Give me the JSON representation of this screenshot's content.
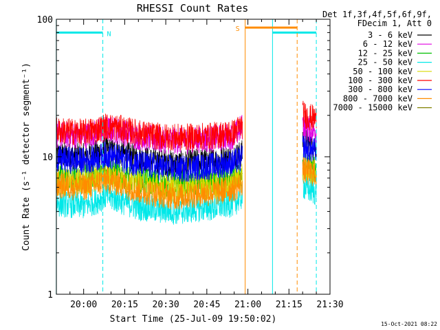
{
  "chart_data": {
    "type": "line",
    "title": "RHESSI Count Rates",
    "xlabel": "Start Time (25-Jul-09 19:50:02)",
    "ylabel": "Count Rate (s⁻¹ detector segment⁻¹)",
    "yscale": "log",
    "ylim": [
      1,
      100
    ],
    "xlim": [
      "19:50:02",
      "21:30"
    ],
    "x_ticks": [
      "20:00",
      "20:15",
      "20:30",
      "20:45",
      "21:00",
      "21:15",
      "21:30"
    ],
    "y_ticks": [
      "1",
      "10",
      "100"
    ],
    "grid": false,
    "legend_position": "top-right",
    "legend_header": [
      "Det 1f,3f,4f,5f,6f,9f,",
      "FDecim 1, Att 0"
    ],
    "timestamp": "15-Oct-2021 08:22",
    "series": [
      {
        "name": "3 - 6 keV",
        "color": "#000000",
        "points": [
          [
            "19:50",
            10.3
          ],
          [
            "20:00",
            10.0
          ],
          [
            "20:05",
            10.6
          ],
          [
            "20:08",
            11.2
          ],
          [
            "20:12",
            10.8
          ],
          [
            "20:20",
            9.7
          ],
          [
            "20:28",
            9.2
          ],
          [
            "20:35",
            8.8
          ],
          [
            "20:42",
            9.2
          ],
          [
            "20:48",
            9.4
          ],
          [
            "20:55",
            9.9
          ],
          [
            "20:58",
            10.6
          ],
          [
            "21:20",
            13.5
          ],
          [
            "21:22",
            12.5
          ],
          [
            "21:25",
            12.0
          ]
        ]
      },
      {
        "name": "6 - 12 keV",
        "color": "#e000e0",
        "points": [
          [
            "19:50",
            14.5
          ],
          [
            "20:00",
            14.2
          ],
          [
            "20:05",
            15.0
          ],
          [
            "20:08",
            15.8
          ],
          [
            "20:12",
            15.5
          ],
          [
            "20:20",
            14.0
          ],
          [
            "20:28",
            13.2
          ],
          [
            "20:35",
            13.0
          ],
          [
            "20:42",
            13.3
          ],
          [
            "20:48",
            13.5
          ],
          [
            "20:55",
            14.2
          ],
          [
            "20:58",
            16.5
          ],
          [
            "21:20",
            17.0
          ],
          [
            "21:22",
            16.0
          ],
          [
            "21:25",
            15.5
          ]
        ]
      },
      {
        "name": "12 - 25 keV",
        "color": "#00c000",
        "points": [
          [
            "19:50",
            7.0
          ],
          [
            "20:00",
            7.0
          ],
          [
            "20:05",
            7.5
          ],
          [
            "20:08",
            8.0
          ],
          [
            "20:12",
            7.6
          ],
          [
            "20:20",
            6.8
          ],
          [
            "20:28",
            6.4
          ],
          [
            "20:35",
            6.2
          ],
          [
            "20:42",
            6.5
          ],
          [
            "20:48",
            6.6
          ],
          [
            "20:55",
            7.0
          ],
          [
            "20:58",
            7.6
          ],
          [
            "21:20",
            8.8
          ],
          [
            "21:22",
            8.4
          ],
          [
            "21:25",
            8.0
          ]
        ]
      },
      {
        "name": "25 - 50 keV",
        "color": "#00e8e8",
        "points": [
          [
            "19:50",
            4.6
          ],
          [
            "20:00",
            4.4
          ],
          [
            "20:05",
            4.8
          ],
          [
            "20:08",
            5.2
          ],
          [
            "20:12",
            4.9
          ],
          [
            "20:20",
            4.3
          ],
          [
            "20:28",
            4.1
          ],
          [
            "20:35",
            4.0
          ],
          [
            "20:42",
            4.2
          ],
          [
            "20:48",
            4.3
          ],
          [
            "20:55",
            4.6
          ],
          [
            "20:58",
            5.2
          ],
          [
            "21:20",
            6.2
          ],
          [
            "21:22",
            5.8
          ],
          [
            "21:25",
            5.5
          ]
        ]
      },
      {
        "name": "50 - 100 keV",
        "color": "#d8d800",
        "points": [
          [
            "19:50",
            6.5
          ],
          [
            "20:00",
            6.5
          ],
          [
            "20:05",
            7.0
          ],
          [
            "20:08",
            7.4
          ],
          [
            "20:12",
            7.0
          ],
          [
            "20:20",
            6.3
          ],
          [
            "20:28",
            6.0
          ],
          [
            "20:35",
            5.8
          ],
          [
            "20:42",
            6.0
          ],
          [
            "20:48",
            6.1
          ],
          [
            "20:55",
            6.5
          ],
          [
            "20:58",
            7.2
          ],
          [
            "21:20",
            8.4
          ],
          [
            "21:22",
            8.0
          ],
          [
            "21:25",
            7.8
          ]
        ]
      },
      {
        "name": "100 - 300 keV",
        "color": "#ff0000",
        "points": [
          [
            "19:50",
            15.5
          ],
          [
            "20:00",
            15.0
          ],
          [
            "20:05",
            15.8
          ],
          [
            "20:08",
            16.6
          ],
          [
            "20:12",
            16.3
          ],
          [
            "20:20",
            14.8
          ],
          [
            "20:28",
            14.0
          ],
          [
            "20:35",
            13.8
          ],
          [
            "20:42",
            14.0
          ],
          [
            "20:48",
            14.3
          ],
          [
            "20:55",
            15.0
          ],
          [
            "20:58",
            17.0
          ],
          [
            "21:20",
            20.5
          ],
          [
            "21:22",
            19.5
          ],
          [
            "21:25",
            18.8
          ]
        ]
      },
      {
        "name": "300 - 800 keV",
        "color": "#0000ff",
        "points": [
          [
            "19:50",
            9.6
          ],
          [
            "20:00",
            9.3
          ],
          [
            "20:05",
            9.8
          ],
          [
            "20:08",
            10.3
          ],
          [
            "20:12",
            9.9
          ],
          [
            "20:20",
            8.9
          ],
          [
            "20:28",
            8.4
          ],
          [
            "20:35",
            8.1
          ],
          [
            "20:42",
            8.4
          ],
          [
            "20:48",
            8.6
          ],
          [
            "20:55",
            9.1
          ],
          [
            "20:58",
            9.8
          ],
          [
            "21:20",
            11.8
          ],
          [
            "21:22",
            11.3
          ],
          [
            "21:25",
            10.9
          ]
        ]
      },
      {
        "name": "800 - 7000 keV",
        "color": "#ff8c00",
        "points": [
          [
            "19:50",
            6.2
          ],
          [
            "20:00",
            6.0
          ],
          [
            "20:05",
            6.4
          ],
          [
            "20:08",
            6.8
          ],
          [
            "20:12",
            6.5
          ],
          [
            "20:20",
            5.7
          ],
          [
            "20:28",
            5.3
          ],
          [
            "20:35",
            5.1
          ],
          [
            "20:42",
            5.4
          ],
          [
            "20:48",
            5.5
          ],
          [
            "20:55",
            5.9
          ],
          [
            "20:58",
            6.5
          ],
          [
            "21:20",
            8.0
          ],
          [
            "21:22",
            7.7
          ],
          [
            "21:25",
            7.5
          ]
        ]
      },
      {
        "name": "7000 - 15000 keV",
        "color": "#808000",
        "points": []
      }
    ],
    "attenuator_markers": [
      {
        "label": "N",
        "color": "#00e8e8",
        "level": 80,
        "segments": [
          [
            "19:50",
            "20:07"
          ],
          [
            "21:09",
            "21:25"
          ]
        ],
        "dashed_times": [
          "20:07",
          "21:25"
        ],
        "solid_times": [
          "19:50",
          "21:09"
        ]
      },
      {
        "label": "S",
        "color": "#ff8c00",
        "level": 87,
        "segments": [
          [
            "20:59",
            "21:18"
          ]
        ],
        "dashed_times": [
          "21:18"
        ],
        "solid_times": [
          "20:59"
        ]
      }
    ]
  },
  "colors": {
    "axis": "#000000",
    "background": "#ffffff"
  }
}
